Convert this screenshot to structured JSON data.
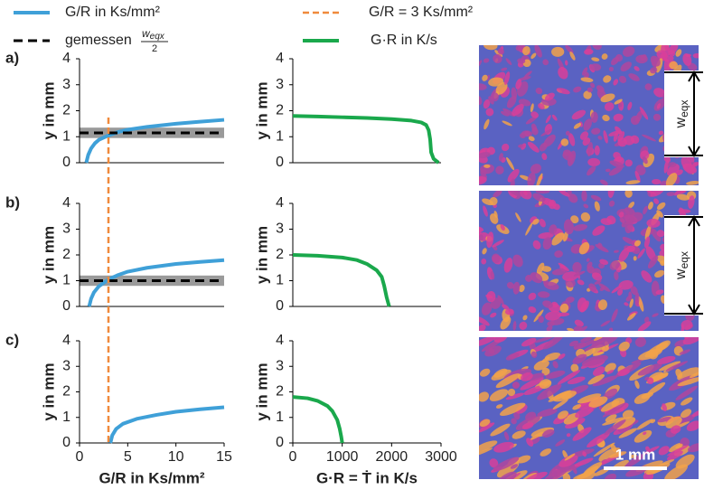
{
  "chart_data": [
    {
      "type": "line",
      "panel": "a)",
      "ylabel": "y in mm",
      "xlim": [
        0,
        15
      ],
      "ylim": [
        0,
        4
      ],
      "yticks": [
        0,
        1,
        2,
        3,
        4
      ],
      "series": [
        {
          "name": "G/R in Ks/mm²",
          "color": "#3fa0d8",
          "x": [
            0.7,
            0.9,
            1.2,
            1.6,
            2,
            3,
            4,
            5,
            7,
            10,
            12.5,
            15
          ],
          "values": [
            0,
            0.3,
            0.55,
            0.75,
            0.88,
            1.05,
            1.18,
            1.27,
            1.38,
            1.5,
            1.58,
            1.65
          ]
        }
      ],
      "measured": {
        "value": 1.15,
        "band": [
          0.95,
          1.35
        ]
      }
    },
    {
      "type": "line",
      "ylabel": "y in mm",
      "xlim": [
        0,
        3000
      ],
      "ylim": [
        0,
        4
      ],
      "yticks": [
        0,
        1,
        2,
        3,
        4
      ],
      "series": [
        {
          "name": "G·R in K/s",
          "color": "#1aa84c",
          "x": [
            0,
            500,
            1000,
            1500,
            2000,
            2400,
            2600,
            2700,
            2750,
            2780,
            2800,
            2850,
            2950
          ],
          "values": [
            1.8,
            1.78,
            1.75,
            1.72,
            1.68,
            1.62,
            1.55,
            1.45,
            1.25,
            0.9,
            0.4,
            0.15,
            0
          ]
        }
      ]
    },
    {
      "type": "line",
      "panel": "b)",
      "ylabel": "y in mm",
      "xlim": [
        0,
        15
      ],
      "ylim": [
        0,
        4
      ],
      "yticks": [
        0,
        1,
        2,
        3,
        4
      ],
      "series": [
        {
          "color": "#3fa0d8",
          "x": [
            1,
            1.2,
            1.5,
            2,
            3,
            4,
            5,
            7,
            10,
            12.5,
            15
          ],
          "values": [
            0,
            0.3,
            0.55,
            0.78,
            1.05,
            1.22,
            1.35,
            1.5,
            1.65,
            1.73,
            1.8
          ]
        }
      ],
      "measured": {
        "value": 1.0,
        "band": [
          0.8,
          1.2
        ]
      }
    },
    {
      "type": "line",
      "ylabel": "y in mm",
      "xlim": [
        0,
        3000
      ],
      "ylim": [
        0,
        4
      ],
      "yticks": [
        0,
        1,
        2,
        3,
        4
      ],
      "series": [
        {
          "color": "#1aa84c",
          "x": [
            0,
            500,
            1000,
            1300,
            1500,
            1700,
            1800,
            1850,
            1900,
            1950
          ],
          "values": [
            2,
            1.97,
            1.9,
            1.8,
            1.65,
            1.4,
            1.15,
            0.8,
            0.35,
            0
          ]
        }
      ]
    },
    {
      "type": "line",
      "panel": "c)",
      "ylabel": "y in mm",
      "xlabel": "G/R in Ks/mm²",
      "xlim": [
        0,
        15
      ],
      "xticks": [
        0,
        5,
        10,
        15
      ],
      "ylim": [
        0,
        4
      ],
      "yticks": [
        0,
        1,
        2,
        3,
        4
      ],
      "series": [
        {
          "color": "#3fa0d8",
          "x": [
            3.2,
            3.4,
            3.8,
            4.5,
            6,
            8,
            10,
            12.5,
            15
          ],
          "values": [
            0,
            0.3,
            0.55,
            0.75,
            0.95,
            1.1,
            1.22,
            1.32,
            1.4
          ]
        }
      ]
    },
    {
      "type": "line",
      "ylabel": "y in mm",
      "xlabel": "G·R = Ṫ in K/s",
      "xlim": [
        0,
        3000
      ],
      "xticks": [
        0,
        1000,
        2000,
        3000
      ],
      "ylim": [
        0,
        4
      ],
      "yticks": [
        0,
        1,
        2,
        3,
        4
      ],
      "series": [
        {
          "color": "#1aa84c",
          "x": [
            0,
            300,
            500,
            700,
            800,
            900,
            950,
            980,
            1000
          ],
          "values": [
            1.8,
            1.75,
            1.65,
            1.45,
            1.25,
            0.9,
            0.55,
            0.25,
            0
          ]
        }
      ]
    }
  ],
  "reference": {
    "label": "G/R = 3 Ks/mm²",
    "value": 3,
    "color": "#f08a3c"
  },
  "legend_measured": {
    "label": "gemessen",
    "numerator": "w",
    "numerator_sub": "eqx",
    "denominator": "2"
  },
  "micrographs": [
    {
      "annotation": "w",
      "annotation_sub": "eqx"
    },
    {
      "annotation": "w",
      "annotation_sub": "eqx"
    },
    {
      "scale_bar": "1 mm"
    }
  ]
}
